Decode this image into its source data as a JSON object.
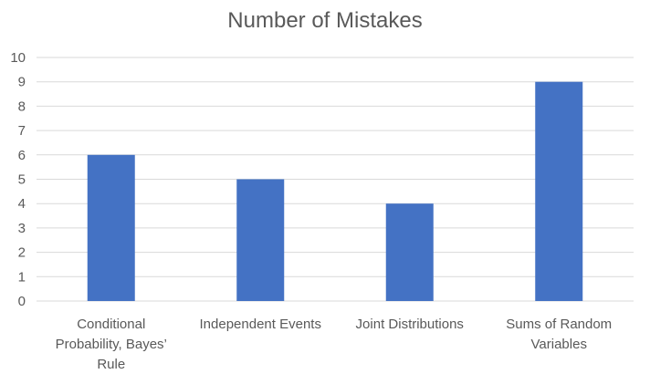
{
  "chart_data": {
    "type": "bar",
    "title": "Number of Mistakes",
    "categories": [
      [
        "Conditional",
        "Probability, Bayes’",
        "Rule"
      ],
      [
        "Independent Events"
      ],
      [
        "Joint Distributions"
      ],
      [
        "Sums of Random",
        "Variables"
      ]
    ],
    "values": [
      6,
      5,
      4,
      9
    ],
    "xlabel": "",
    "ylabel": "",
    "ylim": [
      0,
      10
    ],
    "yticks": [
      0,
      1,
      2,
      3,
      4,
      5,
      6,
      7,
      8,
      9,
      10
    ],
    "grid": true,
    "legend": "none",
    "bar_color": "#4472c4"
  }
}
